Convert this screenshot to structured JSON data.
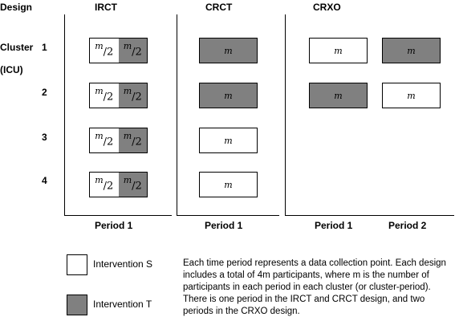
{
  "header": {
    "design_label": "Design",
    "cluster_label": "Cluster",
    "unit_label": "(ICU)"
  },
  "designs": [
    {
      "name": "IRCT",
      "periods": [
        "Period 1"
      ]
    },
    {
      "name": "CRCT",
      "periods": [
        "Period 1"
      ]
    },
    {
      "name": "CRXO",
      "periods": [
        "Period 1",
        "Period 2"
      ]
    }
  ],
  "clusters": [
    "1",
    "2",
    "3",
    "4"
  ],
  "cells": {
    "irct_half": {
      "numerator": "m",
      "denominator": "2"
    },
    "m_symbol": "m",
    "irct": [
      [
        "S",
        "T"
      ],
      [
        "S",
        "T"
      ],
      [
        "S",
        "T"
      ],
      [
        "S",
        "T"
      ]
    ],
    "crct": [
      "T",
      "T",
      "S",
      "S"
    ],
    "crxo": [
      [
        "S",
        "T"
      ],
      [
        "T",
        "S"
      ]
    ]
  },
  "legend": {
    "items": [
      {
        "label": "Intervention S",
        "color": "#ffffff"
      },
      {
        "label": "Intervention T",
        "color": "#808080"
      }
    ]
  },
  "note": "Each time period represents a data collection point. Each design includes a total of 4m participants, where m is the number of participants in each period in each cluster (or cluster-period). There is one period in the IRCT and CRCT design, and two periods in the CRXO design."
}
